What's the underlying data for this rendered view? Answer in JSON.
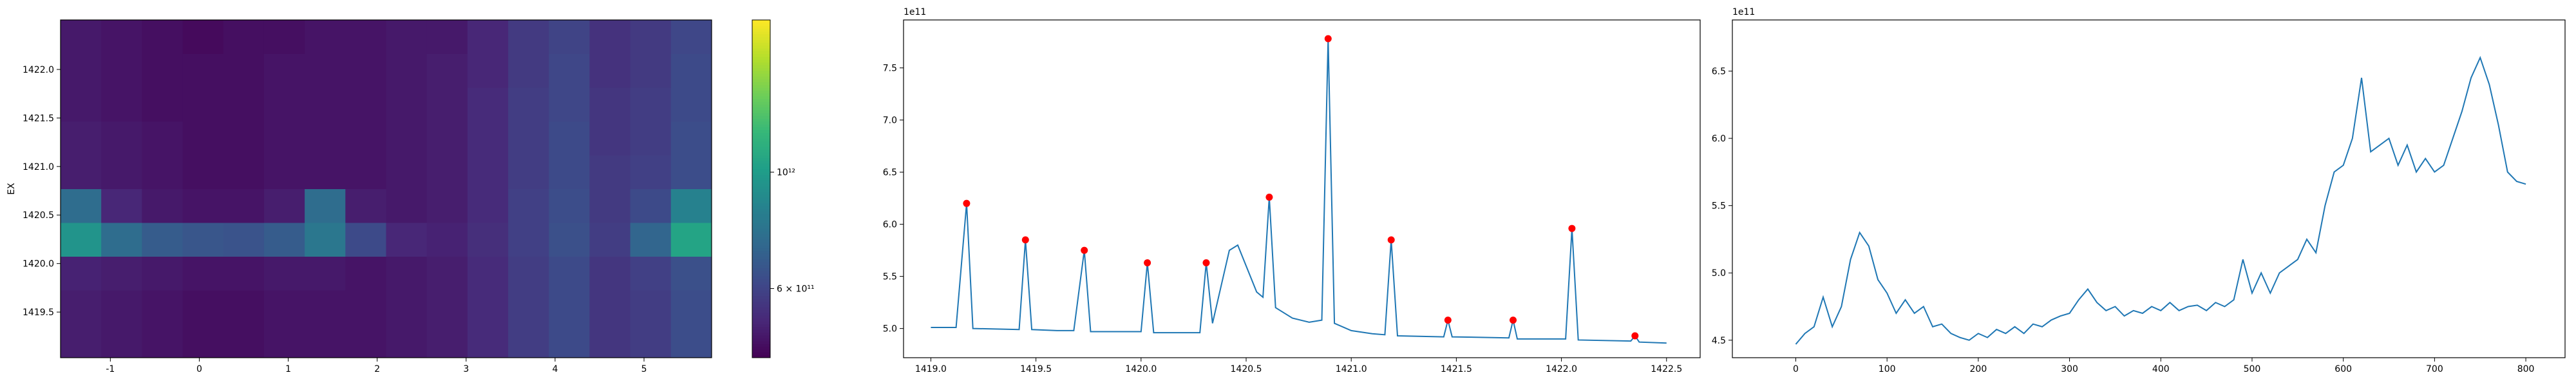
{
  "chart_data": [
    {
      "type": "heatmap",
      "ylabel": "EX",
      "colormap": "viridis",
      "log_color": true,
      "xlim": [
        -1.56,
        5.76
      ],
      "ylim": [
        1419.03,
        1422.51
      ],
      "xticks": [
        -1,
        0,
        1,
        2,
        3,
        4,
        5
      ],
      "yticks": [
        1419.5,
        {
          "value": 1420,
          "label": "1420.0"
        },
        1420.5,
        {
          "value": 1421,
          "label": "1421.0"
        },
        1421.5,
        {
          "value": 1422,
          "label": "1422.0"
        }
      ],
      "xbins": [
        -1.56,
        -1.1025,
        -0.645,
        -0.1875,
        0.27,
        0.7275,
        1.185,
        1.6425,
        2.1,
        2.5575,
        3.015,
        3.4725,
        3.93,
        4.3875,
        4.845,
        5.3025,
        5.76
      ],
      "ybins": [
        1419.03,
        1419.378,
        1419.726,
        1420.074,
        1420.422,
        1420.77,
        1421.118,
        1421.466,
        1421.814,
        1422.162,
        1422.51
      ],
      "z": [
        [
          500000000000.0,
          490000000000.0,
          480000000000.0,
          470000000000.0,
          470000000000.0,
          480000000000.0,
          480000000000.0,
          480000000000.0,
          490000000000.0,
          500000000000.0,
          530000000000.0,
          580000000000.0,
          620000000000.0,
          560000000000.0,
          580000000000.0,
          630000000000.0
        ],
        [
          500000000000.0,
          490000000000.0,
          480000000000.0,
          470000000000.0,
          470000000000.0,
          480000000000.0,
          480000000000.0,
          480000000000.0,
          490000000000.0,
          500000000000.0,
          530000000000.0,
          580000000000.0,
          620000000000.0,
          560000000000.0,
          580000000000.0,
          630000000000.0
        ],
        [
          510000000000.0,
          500000000000.0,
          490000000000.0,
          480000000000.0,
          480000000000.0,
          490000000000.0,
          490000000000.0,
          480000000000.0,
          490000000000.0,
          500000000000.0,
          530000000000.0,
          580000000000.0,
          620000000000.0,
          560000000000.0,
          590000000000.0,
          640000000000.0
        ],
        [
          950000000000.0,
          750000000000.0,
          680000000000.0,
          660000000000.0,
          650000000000.0,
          680000000000.0,
          800000000000.0,
          620000000000.0,
          520000000000.0,
          510000000000.0,
          540000000000.0,
          590000000000.0,
          640000000000.0,
          580000000000.0,
          720000000000.0,
          1050000000000.0
        ],
        [
          750000000000.0,
          520000000000.0,
          490000000000.0,
          480000000000.0,
          480000000000.0,
          500000000000.0,
          750000000000.0,
          500000000000.0,
          490000000000.0,
          500000000000.0,
          530000000000.0,
          590000000000.0,
          630000000000.0,
          570000000000.0,
          620000000000.0,
          850000000000.0
        ],
        [
          500000000000.0,
          490000000000.0,
          480000000000.0,
          470000000000.0,
          470000000000.0,
          480000000000.0,
          480000000000.0,
          480000000000.0,
          490000000000.0,
          500000000000.0,
          530000000000.0,
          580000000000.0,
          620000000000.0,
          570000000000.0,
          590000000000.0,
          630000000000.0
        ],
        [
          500000000000.0,
          490000000000.0,
          480000000000.0,
          470000000000.0,
          470000000000.0,
          480000000000.0,
          480000000000.0,
          480000000000.0,
          490000000000.0,
          500000000000.0,
          530000000000.0,
          580000000000.0,
          620000000000.0,
          560000000000.0,
          580000000000.0,
          630000000000.0
        ],
        [
          490000000000.0,
          480000000000.0,
          470000000000.0,
          470000000000.0,
          470000000000.0,
          480000000000.0,
          480000000000.0,
          480000000000.0,
          490000000000.0,
          500000000000.0,
          530000000000.0,
          580000000000.0,
          610000000000.0,
          560000000000.0,
          580000000000.0,
          620000000000.0
        ],
        [
          490000000000.0,
          480000000000.0,
          470000000000.0,
          470000000000.0,
          470000000000.0,
          480000000000.0,
          480000000000.0,
          480000000000.0,
          490000000000.0,
          500000000000.0,
          520000000000.0,
          570000000000.0,
          610000000000.0,
          550000000000.0,
          570000000000.0,
          620000000000.0
        ],
        [
          490000000000.0,
          480000000000.0,
          470000000000.0,
          460000000000.0,
          470000000000.0,
          470000000000.0,
          480000000000.0,
          480000000000.0,
          490000000000.0,
          490000000000.0,
          520000000000.0,
          570000000000.0,
          600000000000.0,
          550000000000.0,
          570000000000.0,
          610000000000.0
        ]
      ],
      "colorbar": {
        "vlim": [
          443000000000.0,
          1950000000000.0
        ],
        "ticks": [
          {
            "value": 600000000000.0,
            "label": "6 × 10¹¹"
          },
          {
            "value": 1000000000000.0,
            "label": "10¹²"
          }
        ]
      }
    },
    {
      "type": "line",
      "offset_label": "1e11",
      "xlim": [
        1418.87,
        1422.66
      ],
      "ylim": [
        4.72,
        7.96
      ],
      "xticks": [
        {
          "value": 1419,
          "label": "1419.0"
        },
        1419.5,
        {
          "value": 1420,
          "label": "1420.0"
        },
        1420.5,
        {
          "value": 1421,
          "label": "1421.0"
        },
        1421.5,
        {
          "value": 1422,
          "label": "1422.0"
        },
        1422.5
      ],
      "yticks": [
        {
          "value": 5,
          "label": "5.0"
        },
        5.5,
        {
          "value": 6,
          "label": "6.0"
        },
        6.5,
        {
          "value": 7,
          "label": "7.0"
        },
        7.5
      ],
      "series": [
        {
          "color": "#1f77b4",
          "marker": "none",
          "x": [
            1419.0,
            1419.12,
            1419.17,
            1419.2,
            1419.42,
            1419.45,
            1419.48,
            1419.6,
            1419.68,
            1419.73,
            1419.76,
            1420.0,
            1420.03,
            1420.06,
            1420.28,
            1420.31,
            1420.34,
            1420.38,
            1420.42,
            1420.46,
            1420.5,
            1420.55,
            1420.58,
            1420.61,
            1420.64,
            1420.72,
            1420.8,
            1420.86,
            1420.89,
            1420.92,
            1421.0,
            1421.1,
            1421.16,
            1421.19,
            1421.22,
            1421.44,
            1421.46,
            1421.48,
            1421.75,
            1421.77,
            1421.79,
            1422.02,
            1422.05,
            1422.08,
            1422.33,
            1422.35,
            1422.37,
            1422.5
          ],
          "values": [
            5.01,
            5.01,
            6.2,
            5.0,
            4.99,
            5.85,
            4.99,
            4.98,
            4.98,
            5.75,
            4.97,
            4.97,
            5.63,
            4.96,
            4.96,
            5.63,
            5.05,
            5.4,
            5.75,
            5.8,
            5.6,
            5.35,
            5.3,
            6.26,
            5.2,
            5.1,
            5.06,
            5.08,
            7.78,
            5.05,
            4.98,
            4.95,
            4.94,
            5.85,
            4.93,
            4.92,
            5.08,
            4.92,
            4.91,
            5.08,
            4.9,
            4.9,
            5.96,
            4.89,
            4.88,
            4.93,
            4.87,
            4.86
          ]
        },
        {
          "color": "#ff0000",
          "marker": "o",
          "x": [
            1419.17,
            1419.45,
            1419.73,
            1420.03,
            1420.31,
            1420.61,
            1420.89,
            1421.19,
            1421.46,
            1421.77,
            1422.05,
            1422.35
          ],
          "values": [
            6.2,
            5.85,
            5.75,
            5.63,
            5.63,
            6.26,
            7.78,
            5.85,
            5.08,
            5.08,
            5.96,
            4.93
          ]
        }
      ]
    },
    {
      "type": "line",
      "offset_label": "1e11",
      "xlim": [
        -69.5,
        843
      ],
      "ylim": [
        4.37,
        6.88
      ],
      "xticks": [
        0,
        100,
        200,
        300,
        400,
        500,
        600,
        700,
        800
      ],
      "yticks": [
        4.5,
        {
          "value": 5,
          "label": "5.0"
        },
        5.5,
        {
          "value": 6,
          "label": "6.0"
        },
        6.5
      ],
      "series": [
        {
          "color": "#1f77b4",
          "marker": "none",
          "x": [
            0,
            10,
            20,
            30,
            40,
            50,
            60,
            70,
            80,
            90,
            100,
            110,
            120,
            130,
            140,
            150,
            160,
            170,
            180,
            190,
            200,
            210,
            220,
            230,
            240,
            250,
            260,
            270,
            280,
            290,
            300,
            310,
            320,
            330,
            340,
            350,
            360,
            370,
            380,
            390,
            400,
            410,
            420,
            430,
            440,
            450,
            460,
            470,
            480,
            490,
            500,
            510,
            520,
            530,
            540,
            550,
            560,
            570,
            580,
            590,
            600,
            610,
            620,
            630,
            640,
            650,
            660,
            670,
            680,
            690,
            700,
            710,
            720,
            730,
            740,
            750,
            760,
            770,
            780,
            790,
            800
          ],
          "values": [
            4.47,
            4.55,
            4.6,
            4.82,
            4.6,
            4.75,
            5.1,
            5.3,
            5.2,
            4.95,
            4.85,
            4.7,
            4.8,
            4.7,
            4.75,
            4.6,
            4.62,
            4.55,
            4.52,
            4.5,
            4.55,
            4.52,
            4.58,
            4.55,
            4.6,
            4.55,
            4.62,
            4.6,
            4.65,
            4.68,
            4.7,
            4.8,
            4.88,
            4.78,
            4.72,
            4.75,
            4.68,
            4.72,
            4.7,
            4.75,
            4.72,
            4.78,
            4.72,
            4.75,
            4.76,
            4.72,
            4.78,
            4.75,
            4.8,
            5.1,
            4.85,
            5.0,
            4.85,
            5.0,
            5.05,
            5.1,
            5.25,
            5.15,
            5.5,
            5.75,
            5.8,
            6.0,
            6.45,
            5.9,
            5.95,
            6.0,
            5.8,
            5.95,
            5.75,
            5.85,
            5.75,
            5.8,
            6.0,
            6.2,
            6.45,
            6.6,
            6.4,
            6.1,
            5.75,
            5.68,
            5.66
          ]
        }
      ]
    }
  ]
}
